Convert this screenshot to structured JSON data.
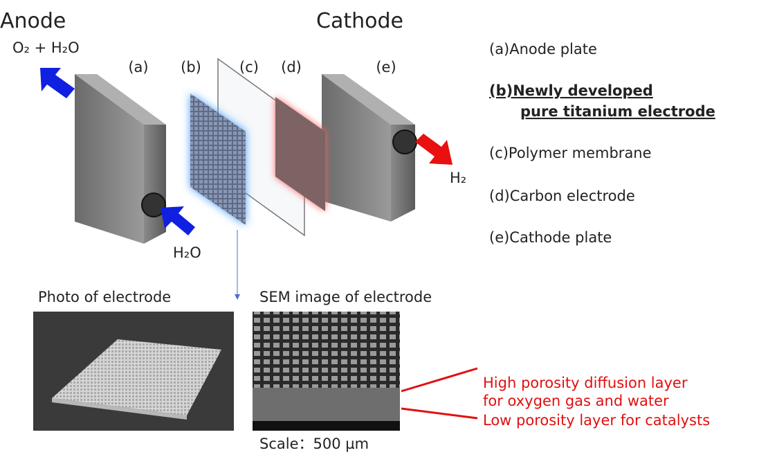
{
  "header": {
    "anode": "Anode",
    "cathode": "Cathode"
  },
  "flows": {
    "anode_out": "O₂ + H₂O",
    "anode_in": "H₂O",
    "cathode_out": "H₂"
  },
  "components": [
    "(a)",
    "(b)",
    "(c)",
    "(d)",
    "(e)"
  ],
  "legend": [
    {
      "lines": [
        "(a)Anode plate"
      ]
    },
    {
      "lines": [
        "(b)Newly developed",
        "pure titanium electrode"
      ]
    },
    {
      "lines": [
        "(c)Polymer membrane"
      ]
    },
    {
      "lines": [
        "(d)Carbon electrode"
      ]
    },
    {
      "lines": [
        "(e)Cathode plate"
      ]
    }
  ],
  "photos": {
    "photo_title": "Photo of electrode",
    "sem_title": "SEM image of electrode",
    "scale": "Scale：500 µm"
  },
  "annotations": [
    {
      "lines": [
        "High porosity diffusion layer",
        "for oxygen gas and water"
      ]
    },
    {
      "lines": [
        "Low porosity layer for catalysts"
      ]
    }
  ]
}
